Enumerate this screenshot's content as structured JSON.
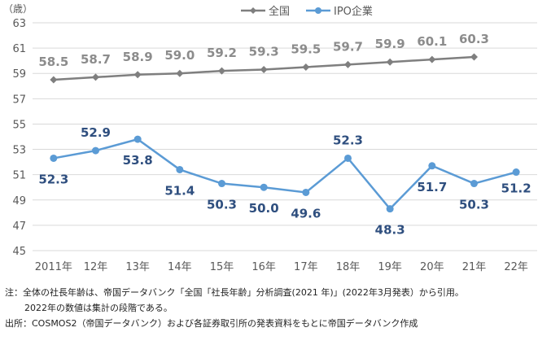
{
  "chart_data": {
    "type": "line",
    "ylabel": "（歳）",
    "ylim": [
      45,
      63
    ],
    "yticks": [
      45,
      47,
      49,
      51,
      53,
      55,
      57,
      59,
      61,
      63
    ],
    "grid": true,
    "legend_position": "top-center",
    "categories": [
      "2011年",
      "12年",
      "13年",
      "14年",
      "15年",
      "16年",
      "17年",
      "18年",
      "19年",
      "20年",
      "21年",
      "22年"
    ],
    "series": [
      {
        "name": "全国",
        "color": "#7f7f7f",
        "label_color": "#8c8c8c",
        "values": [
          58.5,
          58.7,
          58.9,
          59.0,
          59.2,
          59.3,
          59.5,
          59.7,
          59.9,
          60.1,
          60.3,
          null
        ],
        "labels": [
          "58.5",
          "58.7",
          "58.9",
          "59.0",
          "59.2",
          "59.3",
          "59.5",
          "59.7",
          "59.9",
          "60.1",
          "60.3",
          ""
        ]
      },
      {
        "name": "IPO企業",
        "color": "#5b9bd5",
        "label_color": "#2f4f7f",
        "values": [
          52.3,
          52.9,
          53.8,
          51.4,
          50.3,
          50.0,
          49.6,
          52.3,
          48.3,
          51.7,
          50.3,
          51.2
        ],
        "labels": [
          "52.3",
          "52.9",
          "53.8",
          "51.4",
          "50.3",
          "50.0",
          "49.6",
          "52.3",
          "48.3",
          "51.7",
          "50.3",
          "51.2"
        ]
      }
    ]
  },
  "notes": {
    "line1": "注：全体の社長年齢は、帝国データバンク「全国「社長年齢」分析調査(2021 年)」(2022年3月発表）から引用。",
    "line2": "2022年の数値は集計の段階である。",
    "line3": "出所：COSMOS2（帝国データバンク）および各証券取引所の発表資料をもとに帝国データバンク作成"
  }
}
